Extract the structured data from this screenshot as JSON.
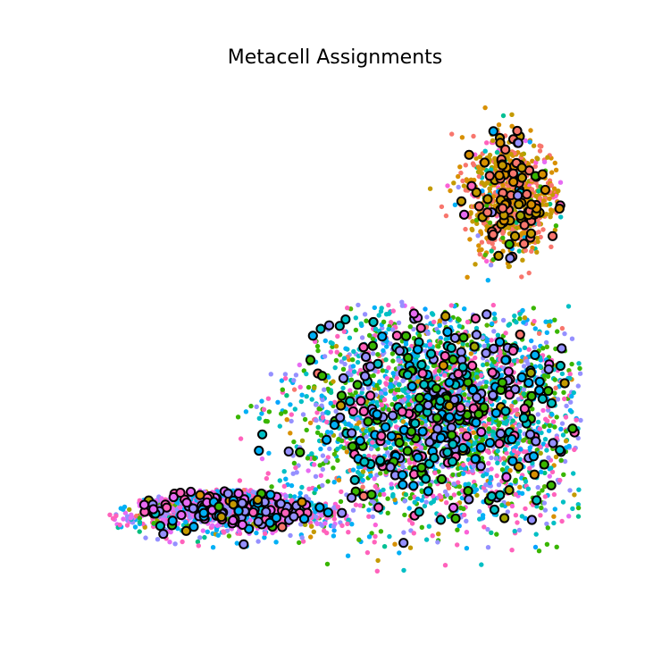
{
  "chart_data": {
    "type": "scatter",
    "title": "Metacell Assignments",
    "xlabel": "",
    "ylabel": "",
    "axes_visible": false,
    "grid": false,
    "legend": "none",
    "cell_point_colors": [
      "#f8766d",
      "#d89000",
      "#a3a500",
      "#39b600",
      "#00bf7d",
      "#00bfc4",
      "#00b0f6",
      "#9590ff",
      "#e76bf3",
      "#ff62bc",
      "#c49a00",
      "#53b400",
      "#00c094",
      "#06a4ff",
      "#fb61d7"
    ],
    "metacell_marker": {
      "fill_colors": [
        "#d89000",
        "#c49a00",
        "#f8766d",
        "#ff62bc",
        "#e76bf3",
        "#00bfc4",
        "#00b0f6",
        "#39b600",
        "#9590ff",
        "#a3a500"
      ],
      "edge_color": "#000000"
    },
    "clusters": [
      {
        "region": "upper-right",
        "dominant_colors": [
          "#d89000",
          "#c49a00",
          "#f8766d"
        ],
        "x_center": 5.3,
        "y_center": 7.1,
        "x_spread": 1.0,
        "y_spread": 1.1,
        "cells": 650,
        "metacells": 95
      },
      {
        "region": "center-right",
        "dominant_colors": [
          "#00bfc4",
          "#9590ff",
          "#ff62bc",
          "#39b600",
          "#00b0f6"
        ],
        "x_center": 3.6,
        "y_center": 2.4,
        "x_spread": 3.0,
        "y_spread": 2.0,
        "cells": 2600,
        "metacells": 330
      },
      {
        "region": "lower-left",
        "dominant_colors": [
          "#e76bf3",
          "#ff62bc",
          "#9590ff",
          "#00b0f6"
        ],
        "x_center": -1.6,
        "y_center": 0.4,
        "x_spread": 2.6,
        "y_spread": 0.5,
        "cells": 900,
        "metacells": 120
      }
    ]
  }
}
